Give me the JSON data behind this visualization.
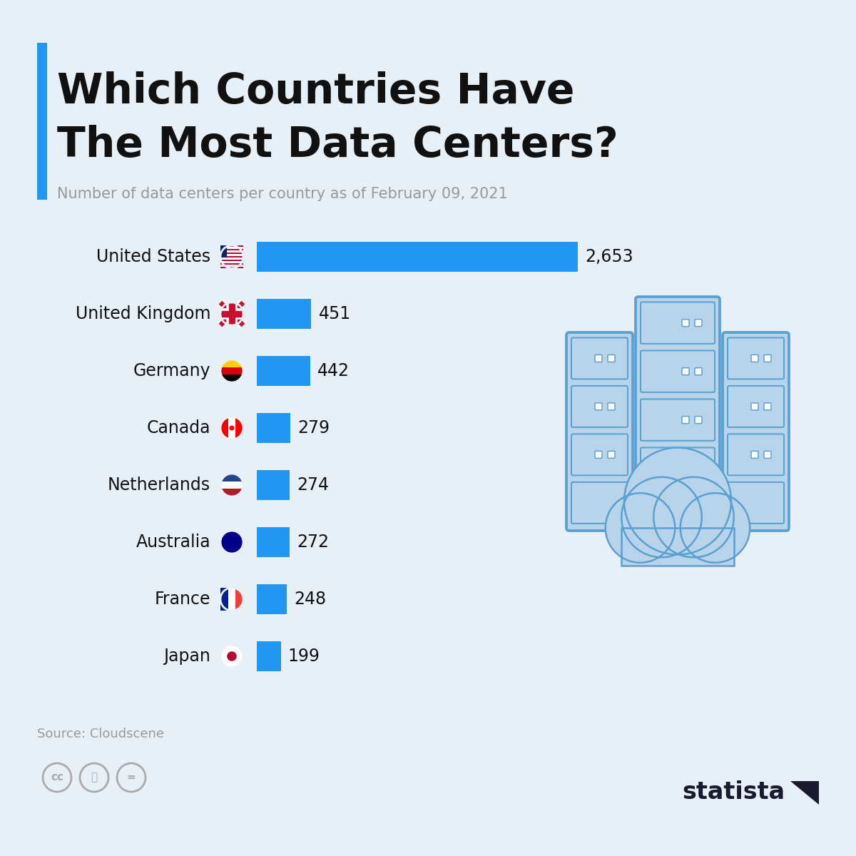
{
  "title_line1": "Which Countries Have",
  "title_line2": "The Most Data Centers?",
  "subtitle": "Number of data centers per country as of February 09, 2021",
  "source": "Source: Cloudscene",
  "background_color": "#e8f0f7",
  "bar_color": "#2196F3",
  "title_bar_color": "#2196F3",
  "countries": [
    "United States",
    "United Kingdom",
    "Germany",
    "Canada",
    "Netherlands",
    "Australia",
    "France",
    "Japan"
  ],
  "values": [
    2653,
    451,
    442,
    279,
    274,
    272,
    248,
    199
  ],
  "max_value": 2653,
  "label_fontsize": 17,
  "title_fontsize": 42,
  "subtitle_fontsize": 15,
  "server_fill": "#b8d4ea",
  "server_edge": "#5aa0d0",
  "cloud_fill": "#b8d4ea",
  "cloud_edge": "#5aa0d0"
}
